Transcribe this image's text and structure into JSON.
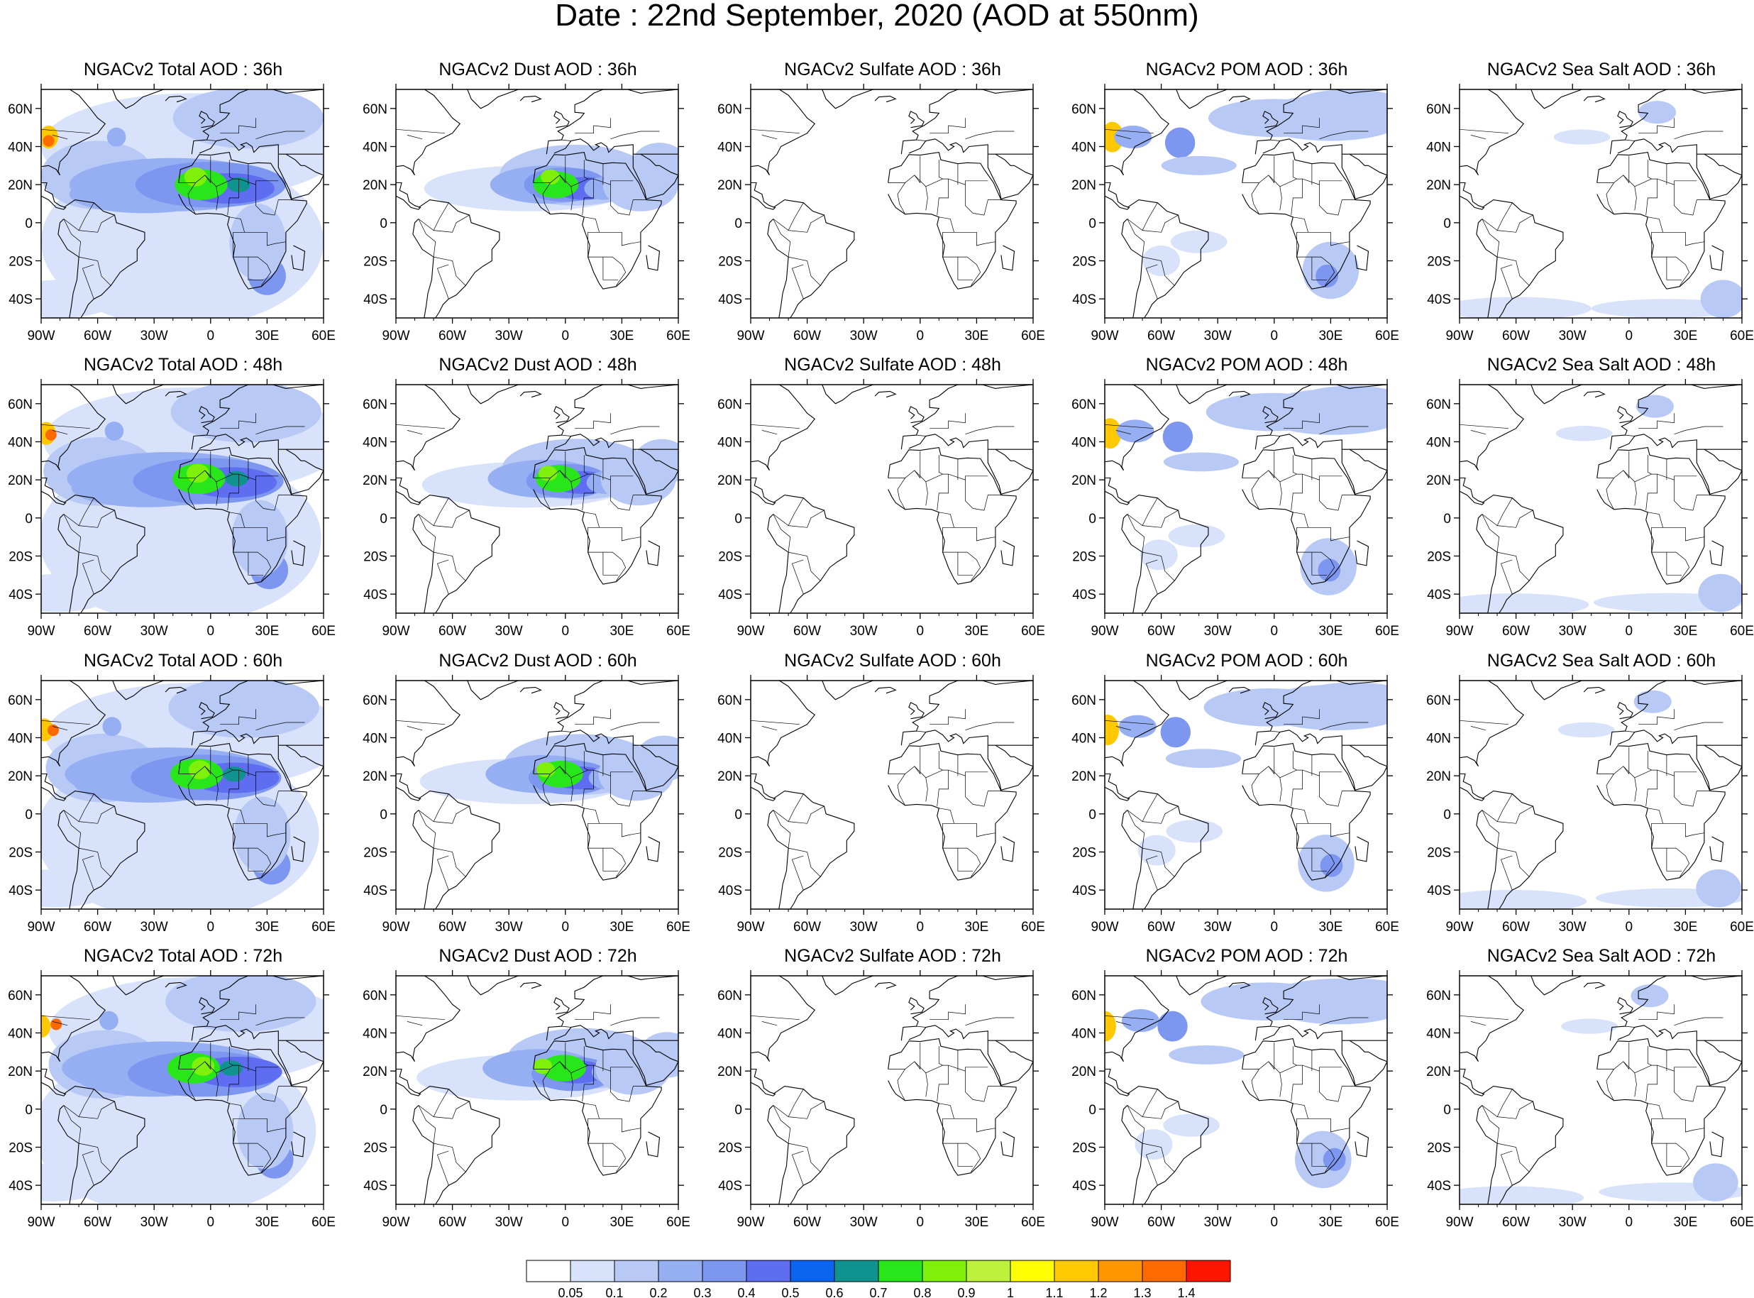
{
  "title": "Date : 22nd  September, 2020 (AOD at 550nm)",
  "map": {
    "lon_range": [
      -90,
      60
    ],
    "lat_range": [
      -50,
      70
    ],
    "lon_ticks": [
      "90W",
      "60W",
      "30W",
      "0",
      "30E",
      "60E"
    ],
    "lat_ticks": [
      "60N",
      "40N",
      "20N",
      "0",
      "20S",
      "40S"
    ]
  },
  "rows": [
    {
      "forecast_hour": "36h",
      "panels": [
        {
          "title": "NGACv2 Total AOD : 36h",
          "species": "total"
        },
        {
          "title": "NGACv2 Dust AOD : 36h",
          "species": "dust"
        },
        {
          "title": "NGACv2 Sulfate AOD : 36h",
          "species": "sulfate"
        },
        {
          "title": "NGACv2 POM AOD : 36h",
          "species": "pom"
        },
        {
          "title": "NGACv2 Sea Salt AOD : 36h",
          "species": "seasalt"
        }
      ]
    },
    {
      "forecast_hour": "48h",
      "panels": [
        {
          "title": "NGACv2 Total AOD : 48h",
          "species": "total"
        },
        {
          "title": "NGACv2 Dust AOD : 48h",
          "species": "dust"
        },
        {
          "title": "NGACv2 Sulfate AOD : 48h",
          "species": "sulfate"
        },
        {
          "title": "NGACv2 POM AOD : 48h",
          "species": "pom"
        },
        {
          "title": "NGACv2 Sea Salt AOD : 48h",
          "species": "seasalt"
        }
      ]
    },
    {
      "forecast_hour": "60h",
      "panels": [
        {
          "title": "NGACv2 Total AOD : 60h",
          "species": "total"
        },
        {
          "title": "NGACv2 Dust AOD : 60h",
          "species": "dust"
        },
        {
          "title": "NGACv2 Sulfate AOD : 60h",
          "species": "sulfate"
        },
        {
          "title": "NGACv2 POM AOD : 60h",
          "species": "pom"
        },
        {
          "title": "NGACv2 Sea Salt AOD : 60h",
          "species": "seasalt"
        }
      ]
    },
    {
      "forecast_hour": "72h",
      "panels": [
        {
          "title": "NGACv2 Total AOD : 72h",
          "species": "total"
        },
        {
          "title": "NGACv2 Dust AOD : 72h",
          "species": "dust"
        },
        {
          "title": "NGACv2 Sulfate AOD : 72h",
          "species": "sulfate"
        },
        {
          "title": "NGACv2 POM AOD : 72h",
          "species": "pom"
        },
        {
          "title": "NGACv2 Sea Salt  AOD : 72h",
          "species": "seasalt"
        }
      ]
    }
  ],
  "colorbar": {
    "labels": [
      "0.05",
      "0.1",
      "0.2",
      "0.3",
      "0.4",
      "0.5",
      "0.6",
      "0.7",
      "0.8",
      "0.9",
      "1",
      "1.1",
      "1.2",
      "1.3",
      "1.4"
    ],
    "colors": [
      "#ffffff",
      "#d8e2fb",
      "#b8c9f6",
      "#96aef2",
      "#7d96ef",
      "#5f6ef0",
      "#0a64f0",
      "#10938f",
      "#28e619",
      "#7ff00a",
      "#bcf23c",
      "#ffff00",
      "#ffc800",
      "#ff9600",
      "#ff6a00",
      "#ff1400"
    ]
  },
  "levels_by_species": {
    "total": "widespread 0.05–0.4 over oceans, dust plume 0.5–0.9 over West Africa, smoke 1.0–1.4 off North American west coast",
    "dust": "plume 0.1–0.9 across Sahara and tropical Atlantic",
    "sulfate": "mostly below 0.05",
    "pom": "smoke plume 0.1–1.4 from western North America across Atlantic, fire aerosol over southern Africa",
    "seasalt": "0.05–0.2 patches over Southern Ocean and North Atlantic"
  }
}
